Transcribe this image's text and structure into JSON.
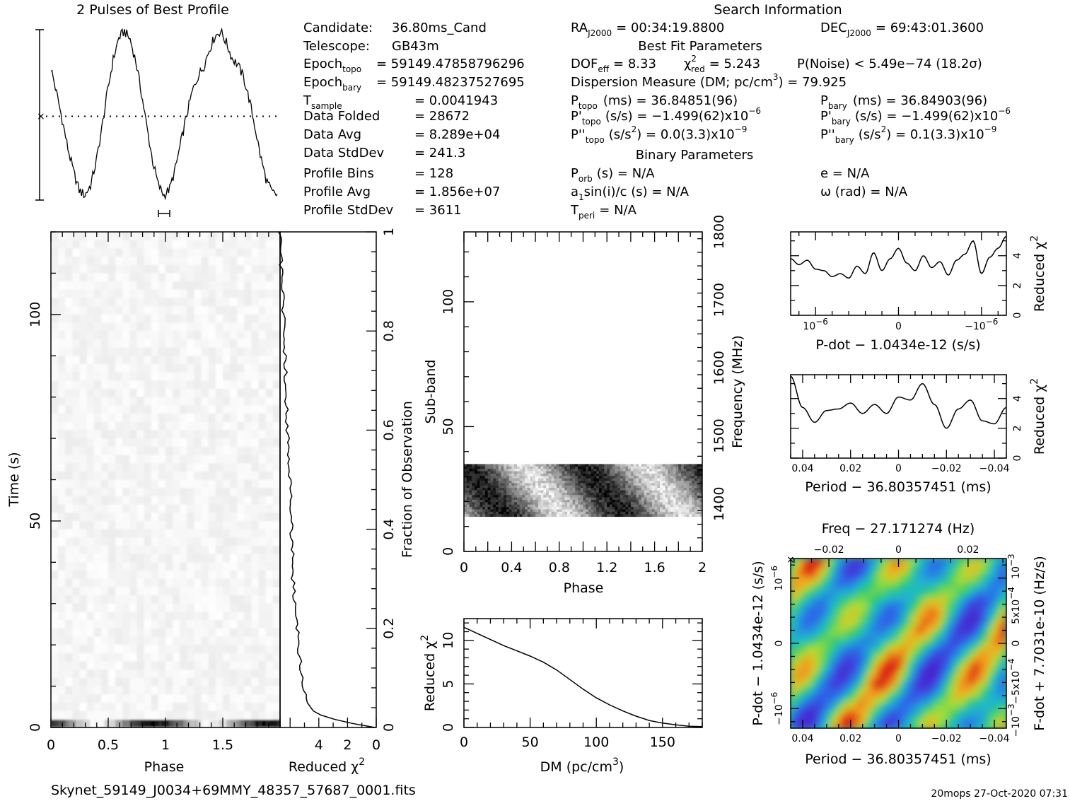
{
  "title": "2 Pulses of Best Profile",
  "search_info_title": "Search Information",
  "best_fit_title": "Best Fit Parameters",
  "binary_title": "Binary Parameters",
  "filename": "Skynet_59149_J0034+69MMY_48357_57687_0001.fits",
  "footer_stamp": "20mops 27-Oct-2020 07:31",
  "info_left": [
    {
      "label": "Candidate:",
      "value": "36.80ms_Cand"
    },
    {
      "label": "Telescope:",
      "value": "GB43m"
    },
    {
      "label": "Epoch",
      "sub": "topo",
      "value": "= 59149.47858796296"
    },
    {
      "label": "Epoch",
      "sub": "bary",
      "value": "= 59149.48237527695"
    },
    {
      "label": "T",
      "sub": "sample",
      "value": "=  0.0041943"
    },
    {
      "label": "Data Folded",
      "value": "=  28672"
    },
    {
      "label": "Data Avg",
      "value": "=  8.289e+04"
    },
    {
      "label": "Data StdDev",
      "value": "=  241.3"
    },
    {
      "label": "Profile Bins",
      "value": "=  128"
    },
    {
      "label": "Profile Avg",
      "value": "=  1.856e+07"
    },
    {
      "label": "Profile StdDev",
      "value": "=  3611"
    }
  ],
  "ra": {
    "label": "RA",
    "sub": "J2000",
    "value": "= 00:34:19.8800"
  },
  "dec": {
    "label": "DEC",
    "sub": "J2000",
    "value": "= 69:43:01.3600"
  },
  "dof": {
    "label": "DOF",
    "sub": "eff",
    "value": "= 8.33"
  },
  "chi2": {
    "label": "χ",
    "sup": "2",
    "sub": "red",
    "value": "= 5.243"
  },
  "pnoise": "P(Noise) < 5.49e−74   (18.2σ)",
  "dm_line": "Dispersion Measure (DM; pc/cm",
  "dm_line_sup": "3",
  "dm_line_end": ") = 79.925",
  "p_topo": {
    "label": "P",
    "sub": "topo",
    "value": "(ms)  =   36.84851(96)"
  },
  "p_bary": {
    "label": "P",
    "sub": "bary",
    "value": "(ms)  =   36.84903(96)"
  },
  "pd_topo": {
    "label": "P'",
    "sub": "topo",
    "value": "(s/s) = −1.499(62)x10",
    "exp": "−6"
  },
  "pd_bary": {
    "label": "P'",
    "sub": "bary",
    "value": "(s/s) = −1.499(62)x10",
    "exp": "−6"
  },
  "pdd_topo": {
    "label": "P''",
    "sub": "topo",
    "value": "(s/s",
    "value2": ") = 0.0(3.3)x10",
    "exp": "−9"
  },
  "pdd_bary": {
    "label": "P''",
    "sub": "bary",
    "value": "(s/s",
    "value2": ") =  0.1(3.3)x10",
    "exp": "−9"
  },
  "porb": {
    "label": "P",
    "sub": "orb",
    "value": "(s) = N/A"
  },
  "ecc": "e = N/A",
  "asini": {
    "label": "a",
    "sub": "1",
    "value": "sin(i)/c (s) = N/A"
  },
  "omega": "ω (rad) = N/A",
  "tperi": {
    "label": "T",
    "sub": "peri",
    "value": "= N/A"
  },
  "chart_data": [
    {
      "id": "profile",
      "type": "line",
      "title": "2 Pulses of Best Profile",
      "xlim": [
        0,
        2
      ],
      "x": [
        0,
        0.05,
        0.1,
        0.15,
        0.2,
        0.25,
        0.3,
        0.35,
        0.4,
        0.45,
        0.5,
        0.55,
        0.6,
        0.65,
        0.7,
        0.75,
        0.8,
        0.85,
        0.9,
        0.95,
        1.0,
        1.05,
        1.1,
        1.15,
        1.2,
        1.25,
        1.3,
        1.35,
        1.4,
        1.45,
        1.5,
        1.55,
        1.6,
        1.65,
        1.7,
        1.75,
        1.8,
        1.85,
        1.9,
        1.95,
        2.0
      ],
      "values": [
        0.78,
        0.63,
        0.47,
        0.3,
        0.16,
        0.05,
        0.02,
        0.08,
        0.22,
        0.42,
        0.64,
        0.83,
        0.96,
        1.0,
        0.95,
        0.82,
        0.63,
        0.42,
        0.22,
        0.08,
        0.02,
        0.06,
        0.18,
        0.34,
        0.5,
        0.64,
        0.73,
        0.79,
        0.89,
        0.97,
        1.0,
        0.93,
        0.84,
        0.8,
        0.73,
        0.6,
        0.44,
        0.26,
        0.12,
        0.04,
        0.02
      ],
      "mean_level": 0.5
    },
    {
      "id": "time_phase",
      "type": "heatmap",
      "xlabel": "Phase",
      "ylabel": "Time (s)",
      "xticks": [
        "0",
        "0.5",
        "1",
        "1.5"
      ],
      "yticks": [
        "0",
        "50",
        "100"
      ],
      "xlim": [
        0,
        2
      ],
      "ylim": [
        0,
        120
      ]
    },
    {
      "id": "time_chi2",
      "type": "line",
      "xlabel": "Reduced χ",
      "xlabel_sup": "2",
      "ylabel": "Fraction of Observation",
      "xticks": [
        "4",
        "2",
        "0"
      ],
      "yticks": [
        "0",
        "0.2",
        "0.4",
        "0.6",
        "0.8",
        "1"
      ],
      "xlim": [
        6.7,
        0
      ],
      "ylim": [
        0,
        1
      ],
      "y": [
        0,
        0.01,
        0.02,
        0.03,
        0.05,
        0.1,
        0.2,
        0.3,
        0.4,
        0.5,
        0.6,
        0.7,
        0.8,
        0.9,
        1.0
      ],
      "values": [
        0.1,
        2.0,
        3.4,
        4.3,
        4.8,
        5.2,
        5.5,
        5.8,
        5.9,
        6.0,
        6.2,
        6.3,
        6.4,
        6.6,
        6.7
      ]
    },
    {
      "id": "subband_phase",
      "type": "heatmap",
      "xlabel": "Phase",
      "ylabel": "Sub-band",
      "y2label": "Frequency (MHz)",
      "xticks": [
        "0",
        "0.4",
        "0.8",
        "1.2",
        "1.6",
        "2"
      ],
      "yticks": [
        "0",
        "50",
        "100"
      ],
      "y2ticks": [
        "1400",
        "1500",
        "1600",
        "1700",
        "1800"
      ],
      "xlim": [
        0,
        2
      ],
      "ylim": [
        0,
        128
      ],
      "band": [
        14,
        35
      ]
    },
    {
      "id": "dm_chi2",
      "type": "line",
      "xlabel": "DM (pc/cm",
      "xlabel_sup": "3",
      "xlabel_end": ")",
      "ylabel": "Reduced χ",
      "ylabel_sup": "2",
      "xticks": [
        "0",
        "50",
        "100",
        "150"
      ],
      "yticks": [
        "0",
        "5",
        "10"
      ],
      "xlim": [
        0,
        180
      ],
      "ylim": [
        0,
        12.5
      ],
      "x": [
        0,
        10,
        20,
        30,
        40,
        50,
        60,
        70,
        80,
        90,
        100,
        110,
        120,
        130,
        140,
        150,
        160,
        170,
        180
      ],
      "values": [
        11.5,
        10.8,
        10.1,
        9.4,
        8.8,
        8.2,
        7.5,
        6.6,
        5.5,
        4.4,
        3.4,
        2.6,
        1.9,
        1.3,
        0.8,
        0.5,
        0.3,
        0.15,
        0.1
      ]
    },
    {
      "id": "pdot_chi2",
      "type": "line",
      "xlabel": "P-dot − 1.0434e-12 (s/s)",
      "ylabel": "Reduced χ",
      "ylabel_sup": "2",
      "xticks": [
        "10",
        "0",
        "−10"
      ],
      "xticks_exp": [
        "−6",
        "",
        "−6"
      ],
      "yticks": [
        "0",
        "2",
        "4"
      ],
      "xlim": [
        1.3,
        -1.3
      ],
      "ylim": [
        0,
        5.6
      ],
      "x": [
        1.3,
        1.2,
        1.1,
        1.0,
        0.9,
        0.8,
        0.7,
        0.6,
        0.5,
        0.4,
        0.3,
        0.2,
        0.1,
        0,
        -0.1,
        -0.2,
        -0.3,
        -0.4,
        -0.5,
        -0.6,
        -0.7,
        -0.8,
        -0.9,
        -1.0,
        -1.1,
        -1.2,
        -1.3
      ],
      "values": [
        3.8,
        3.4,
        3.7,
        3.1,
        3.0,
        2.6,
        2.8,
        2.5,
        3.3,
        2.8,
        4.2,
        3.0,
        3.8,
        4.5,
        3.5,
        3.0,
        4.0,
        3.2,
        3.6,
        2.7,
        3.7,
        4.1,
        5.0,
        2.8,
        3.9,
        4.5,
        5.3
      ]
    },
    {
      "id": "period_chi2",
      "type": "line",
      "xlabel": "Period − 36.80357451 (ms)",
      "ylabel": "Reduced χ",
      "ylabel_sup": "2",
      "xticks": [
        "0.04",
        "0.02",
        "0",
        "−0.02",
        "−0.04"
      ],
      "yticks": [
        "0",
        "2",
        "4"
      ],
      "xlim": [
        0.045,
        -0.045
      ],
      "ylim": [
        0,
        5.6
      ],
      "x": [
        0.045,
        0.04,
        0.035,
        0.03,
        0.025,
        0.02,
        0.015,
        0.01,
        0.005,
        0,
        -0.005,
        -0.01,
        -0.015,
        -0.02,
        -0.025,
        -0.03,
        -0.035,
        -0.04,
        -0.045
      ],
      "values": [
        5.5,
        3.4,
        2.4,
        3.2,
        3.3,
        3.7,
        3.0,
        3.6,
        3.0,
        4.1,
        3.9,
        5.0,
        3.6,
        2.0,
        3.3,
        3.9,
        2.5,
        2.3,
        3.4
      ]
    },
    {
      "id": "period_pdot",
      "type": "heatmap",
      "title": "Freq − 27.171274 (Hz)",
      "xlabel": "Period − 36.80357451 (ms)",
      "ylabel": "P-dot − 1.0434e-12 (s/s)",
      "y2label": "F-dot + 7.7031e-10 (Hz/s)",
      "xticks": [
        "0.04",
        "0.02",
        "0",
        "−0.02",
        "−0.04"
      ],
      "x2ticks": [
        "−0.02",
        "0",
        "0.02"
      ],
      "yticks": [
        "10",
        "0",
        "−10"
      ],
      "yticks_exp": [
        "−6",
        "",
        "−6"
      ],
      "y2ticks": [
        "−10",
        "−5x10",
        "0",
        "5x10",
        "10"
      ],
      "y2ticks_exp": [
        "−3",
        "−4",
        "",
        "−4",
        "−3"
      ],
      "xlim": [
        0.045,
        -0.045
      ],
      "ylim": [
        1.3,
        -1.3
      ]
    }
  ]
}
